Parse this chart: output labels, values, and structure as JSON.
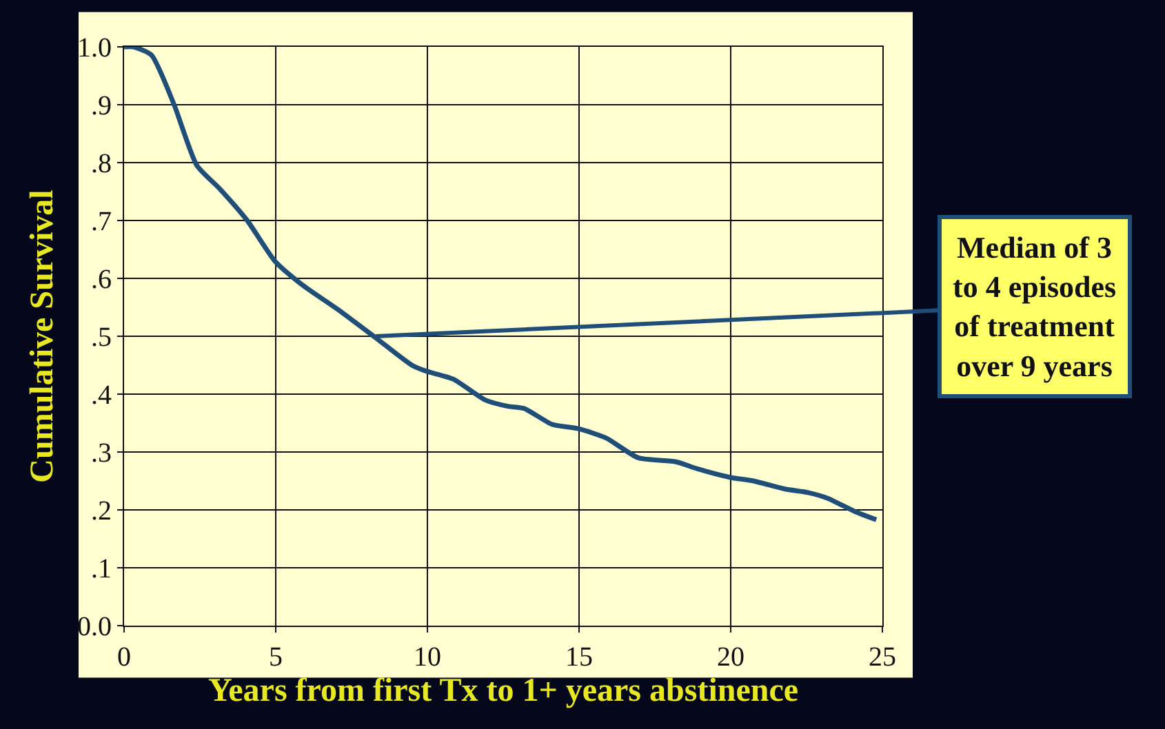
{
  "chart_data": {
    "type": "line",
    "xlabel": "Years from first Tx to 1+ years abstinence",
    "ylabel": "Cumulative Survival",
    "x": [
      0,
      0.3,
      0.9,
      1.65,
      2.4,
      3.15,
      4.06,
      4.97,
      5.87,
      7.08,
      8.28,
      9.49,
      9.94,
      10.85,
      11.9,
      12.65,
      13.2,
      14.1,
      15.0,
      15.9,
      16.95,
      18.2,
      18.9,
      20.0,
      20.75,
      21.8,
      22.55,
      23.2,
      24.1,
      24.8
    ],
    "series": [
      {
        "color": "#1f4e79",
        "values": [
          1.0,
          1.0,
          0.986,
          0.9,
          0.795,
          0.755,
          0.7,
          0.63,
          0.589,
          0.545,
          0.498,
          0.45,
          0.44,
          0.426,
          0.39,
          0.379,
          0.375,
          0.348,
          0.34,
          0.324,
          0.29,
          0.283,
          0.271,
          0.256,
          0.25,
          0.236,
          0.23,
          0.22,
          0.197,
          0.183
        ]
      }
    ],
    "xlim": [
      0,
      25
    ],
    "xticks": [
      0,
      5,
      10,
      15,
      20,
      25
    ],
    "ylim": [
      0,
      1
    ],
    "yticks": [
      {
        "value": 0,
        "label": "0.0"
      },
      {
        "value": 0.1,
        "label": ".1"
      },
      {
        "value": 0.2,
        "label": ".2"
      },
      {
        "value": 0.3,
        "label": ".3"
      },
      {
        "value": 0.4,
        "label": ".4"
      },
      {
        "value": 0.5,
        "label": ".5"
      },
      {
        "value": 0.6,
        "label": ".6"
      },
      {
        "value": 0.7,
        "label": ".7"
      },
      {
        "value": 0.8,
        "label": ".8"
      },
      {
        "value": 0.9,
        "label": ".9"
      },
      {
        "value": 1,
        "label": "1.0"
      }
    ],
    "annotations": [
      {
        "text": "Median of 3\nto 4 episodes\nof treatment\nover 9 years",
        "x": 8.3,
        "y": 0.5
      }
    ],
    "grid": true,
    "marker": "none",
    "line_style": "solid"
  }
}
